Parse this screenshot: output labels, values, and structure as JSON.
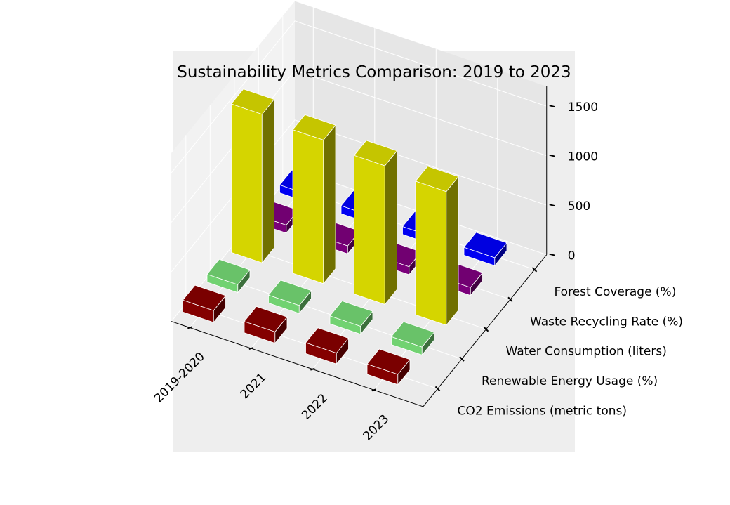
{
  "chart_data": {
    "type": "bar3d",
    "title": "Sustainability Metrics Comparison: 2019 to 2023",
    "x_categories": [
      "2019-2020",
      "2021",
      "2022",
      "2023"
    ],
    "y_categories": [
      "CO2 Emissions (metric tons)",
      "Renewable Energy Usage (%)",
      "Water Consumption (liters)",
      "Waste Recycling Rate (%)",
      "Forest Coverage (%)"
    ],
    "z_ticks": [
      "0",
      "500",
      "1000",
      "1500"
    ],
    "zlim": [
      0,
      1700
    ],
    "grid": true,
    "series": [
      {
        "name": "CO2 Emissions (metric tons)",
        "color": "#8b0000",
        "values": [
          120,
          115,
          110,
          105
        ]
      },
      {
        "name": "Renewable Energy Usage (%)",
        "color": "#77dd77",
        "values": [
          25,
          28,
          30,
          35
        ]
      },
      {
        "name": "Water Consumption (liters)",
        "color": "#e0e000",
        "values": [
          1500,
          1450,
          1400,
          1350
        ]
      },
      {
        "name": "Waste Recycling Rate (%)",
        "color": "#800080",
        "values": [
          40,
          42,
          45,
          48
        ]
      },
      {
        "name": "Forest Coverage (%)",
        "color": "#0000ff",
        "values": [
          30,
          32,
          33,
          35
        ]
      }
    ]
  }
}
